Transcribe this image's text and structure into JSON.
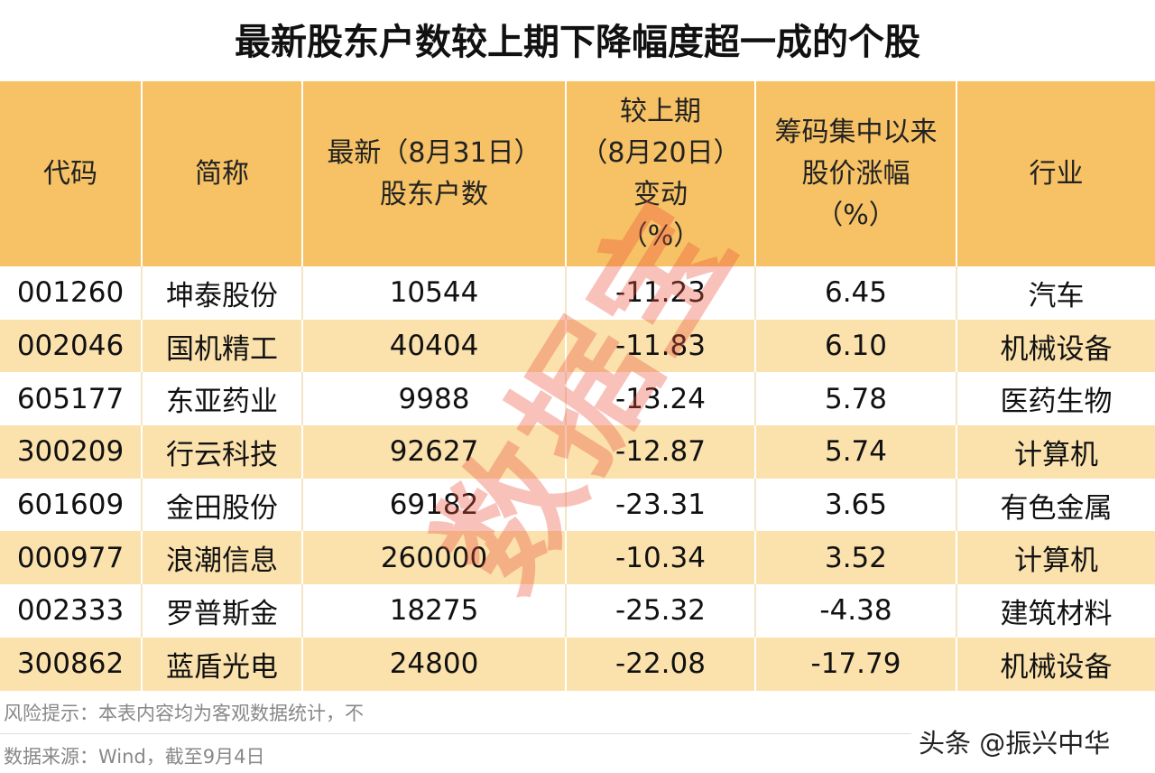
{
  "header": {
    "title": "最新股东户数较上期下降幅度超一成的个股"
  },
  "table": {
    "columns": [
      [
        "代码"
      ],
      [
        "简称"
      ],
      [
        "最新（8月31日）",
        "股东户数"
      ],
      [
        "较上期",
        "（8月20日）",
        "变动",
        "（%）"
      ],
      [
        "筹码集中以来",
        "股价涨幅",
        "（%）"
      ],
      [
        "行业"
      ]
    ],
    "rows": [
      [
        "001260",
        "坤泰股份",
        "10544",
        "-11.23",
        "6.45",
        "汽车"
      ],
      [
        "002046",
        "国机精工",
        "40404",
        "-11.83",
        "6.10",
        "机械设备"
      ],
      [
        "605177",
        "东亚药业",
        "9988",
        "-13.24",
        "5.78",
        "医药生物"
      ],
      [
        "300209",
        "行云科技",
        "92627",
        "-12.87",
        "5.74",
        "计算机"
      ],
      [
        "601609",
        "金田股份",
        "69182",
        "-23.31",
        "3.65",
        "有色金属"
      ],
      [
        "000977",
        "浪潮信息",
        "260000",
        "-10.34",
        "3.52",
        "计算机"
      ],
      [
        "002333",
        "罗普斯金",
        "18275",
        "-25.32",
        "-4.38",
        "建筑材料"
      ],
      [
        "300862",
        "蓝盾光电",
        "24800",
        "-22.08",
        "-17.79",
        "机械设备"
      ]
    ]
  },
  "watermark": "数据宝",
  "footer": {
    "risk": "风险提示：本表内容均为客观数据统计，不",
    "source": "数据来源：Wind，截至9月4日",
    "brand": "头条 @振兴中华"
  }
}
